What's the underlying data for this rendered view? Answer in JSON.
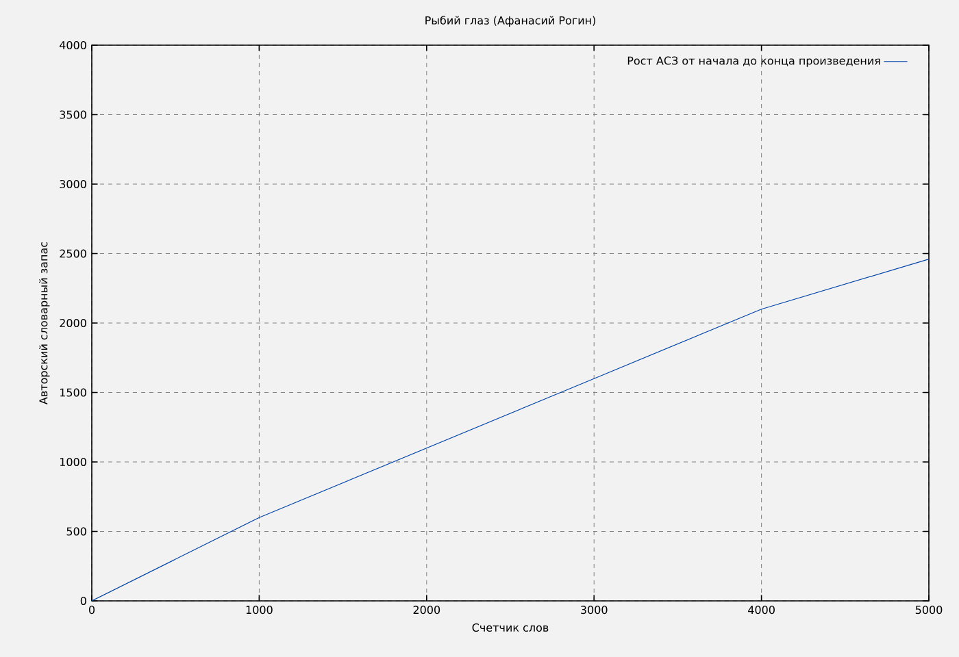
{
  "chart_data": {
    "type": "line",
    "title": "Рыбий глаз (Афанасий Рогин)",
    "xlabel": "Счетчик слов",
    "ylabel": "Авторский словарный запас",
    "x": [
      0,
      1000,
      2000,
      3000,
      4000,
      5000
    ],
    "series": [
      {
        "name": "Рост АСЗ от начала до конца произведения",
        "color": "#0044aa",
        "values": [
          0,
          600,
          1100,
          1600,
          2100,
          2460
        ]
      }
    ],
    "xlim": [
      0,
      5000
    ],
    "ylim": [
      0,
      4000
    ],
    "xticks": [
      0,
      1000,
      2000,
      3000,
      4000,
      5000
    ],
    "yticks": [
      0,
      500,
      1000,
      1500,
      2000,
      2500,
      3000,
      3500,
      4000
    ],
    "grid": true,
    "legend": "top right",
    "marker": "none",
    "line_style": "solid"
  }
}
